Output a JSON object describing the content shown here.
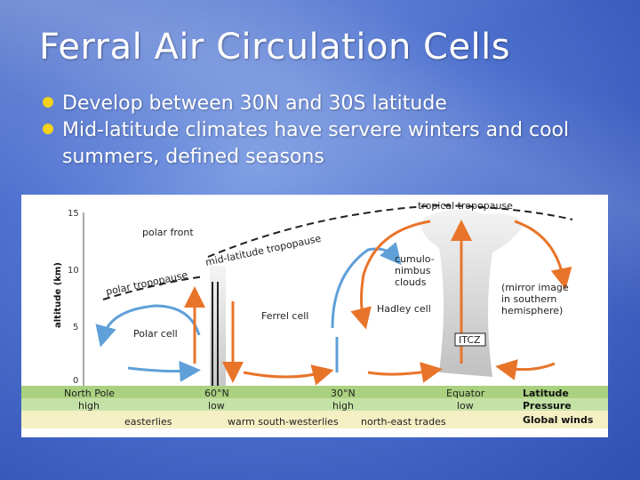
{
  "slide": {
    "title": "Ferral Air Circulation Cells",
    "bullets": [
      "Develop between 30N and 30S latitude",
      "Mid-latitude climates have servere winters and cool summers, defined seasons"
    ],
    "colors": {
      "background": "#4f72cf",
      "bullet": "#f2d21a",
      "warm_arrow": "#e8742a",
      "cool_arrow": "#5fa0d8",
      "ground": "#b5d890"
    }
  },
  "diagram": {
    "altitude_axis": {
      "label": "altitude (km)",
      "ticks": [
        "15",
        "10",
        "5",
        "0"
      ]
    },
    "labels": {
      "tropical_tropopause": "tropical tropopause",
      "polar_front": "polar front",
      "midlat_tropopause": "mid-latitude tropopause",
      "polar_tropopause": "polar tropopause",
      "cumulonimbus": [
        "cumulo-",
        "nimbus",
        "clouds"
      ],
      "mirror": [
        "(mirror image",
        "in southern",
        "hemisphere)"
      ],
      "polar_cell": "Polar cell",
      "ferrel_cell": "Ferrel cell",
      "hadley_cell": "Hadley cell",
      "itcz": "ITCZ"
    },
    "latitudes": [
      {
        "lat": "North Pole",
        "pressure": "high"
      },
      {
        "lat": "60°N",
        "pressure": "low"
      },
      {
        "lat": "30°N",
        "pressure": "high"
      },
      {
        "lat": "Equator",
        "pressure": "low"
      }
    ],
    "row_legend": {
      "latitude": "Latitude",
      "pressure": "Pressure",
      "winds": "Global winds"
    },
    "winds": [
      "easterlies",
      "warm south-westerlies",
      "north-east trades"
    ]
  }
}
